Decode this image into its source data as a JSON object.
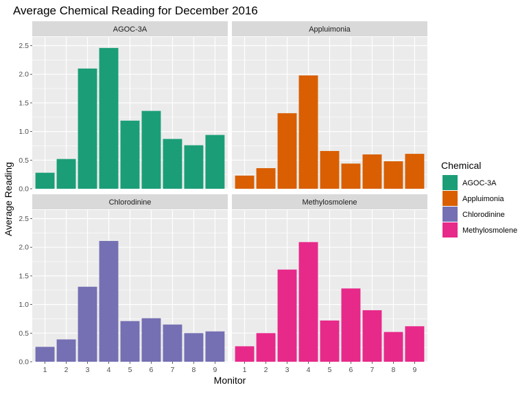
{
  "chart_data": {
    "type": "bar",
    "title": "Average Chemical Reading for December 2016",
    "xlabel": "Monitor",
    "ylabel": "Average Reading",
    "categories": [
      "1",
      "2",
      "3",
      "4",
      "5",
      "6",
      "7",
      "8",
      "9"
    ],
    "ylim": [
      0,
      2.65
    ],
    "yticks": [
      0.0,
      0.5,
      1.0,
      1.5,
      2.0,
      2.5
    ],
    "ytick_labels": [
      "0.0",
      "0.5",
      "1.0",
      "1.5",
      "2.0",
      "2.5"
    ],
    "grid": true,
    "legend": {
      "title": "Chemical",
      "position": "right"
    },
    "series": [
      {
        "name": "AGOC-3A",
        "color": "#1b9e77",
        "values": [
          0.28,
          0.52,
          2.1,
          2.46,
          1.19,
          1.36,
          0.87,
          0.76,
          0.94
        ]
      },
      {
        "name": "Appluimonia",
        "color": "#d95f02",
        "values": [
          0.23,
          0.36,
          1.32,
          1.98,
          0.66,
          0.44,
          0.6,
          0.48,
          0.61
        ]
      },
      {
        "name": "Chlorodinine",
        "color": "#7570b3",
        "values": [
          0.26,
          0.39,
          1.31,
          2.11,
          0.71,
          0.76,
          0.65,
          0.5,
          0.53
        ]
      },
      {
        "name": "Methylosmolene",
        "color": "#e7298a",
        "values": [
          0.27,
          0.5,
          1.61,
          2.09,
          0.72,
          1.28,
          0.9,
          0.52,
          0.62
        ]
      }
    ]
  }
}
